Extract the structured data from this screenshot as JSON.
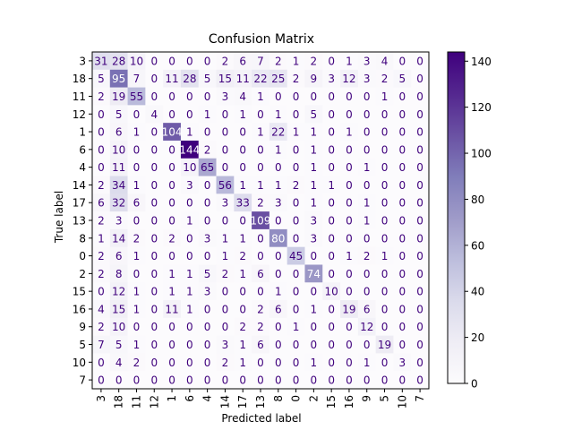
{
  "chart_data": {
    "type": "heatmap",
    "title": "Confusion Matrix",
    "xlabel": "Predicted label",
    "ylabel": "True label",
    "labels": [
      "3",
      "18",
      "11",
      "12",
      "1",
      "6",
      "4",
      "14",
      "17",
      "13",
      "8",
      "0",
      "2",
      "15",
      "16",
      "9",
      "5",
      "10",
      "7"
    ],
    "matrix": [
      [
        31,
        28,
        10,
        0,
        0,
        0,
        0,
        2,
        6,
        7,
        2,
        1,
        2,
        0,
        1,
        3,
        4,
        0,
        0
      ],
      [
        5,
        95,
        7,
        0,
        11,
        28,
        5,
        15,
        11,
        22,
        25,
        2,
        9,
        3,
        12,
        3,
        2,
        5,
        0
      ],
      [
        2,
        19,
        55,
        0,
        0,
        0,
        0,
        3,
        4,
        1,
        0,
        0,
        0,
        0,
        0,
        0,
        1,
        0,
        0
      ],
      [
        0,
        5,
        0,
        4,
        0,
        0,
        1,
        0,
        1,
        0,
        1,
        0,
        5,
        0,
        0,
        0,
        0,
        0,
        0
      ],
      [
        0,
        6,
        1,
        0,
        104,
        1,
        0,
        0,
        0,
        1,
        22,
        1,
        1,
        0,
        1,
        0,
        0,
        0,
        0
      ],
      [
        0,
        10,
        0,
        0,
        0,
        144,
        2,
        0,
        0,
        0,
        1,
        0,
        1,
        0,
        0,
        0,
        0,
        0,
        0
      ],
      [
        0,
        11,
        0,
        0,
        0,
        10,
        65,
        0,
        0,
        0,
        0,
        0,
        1,
        0,
        0,
        1,
        0,
        0,
        0
      ],
      [
        2,
        34,
        1,
        0,
        0,
        3,
        0,
        56,
        1,
        1,
        1,
        2,
        1,
        1,
        0,
        0,
        0,
        0,
        0
      ],
      [
        6,
        32,
        6,
        0,
        0,
        0,
        0,
        3,
        33,
        2,
        3,
        0,
        1,
        0,
        0,
        1,
        0,
        0,
        0
      ],
      [
        2,
        3,
        0,
        0,
        0,
        1,
        0,
        0,
        0,
        109,
        0,
        0,
        3,
        0,
        0,
        1,
        0,
        0,
        0
      ],
      [
        1,
        14,
        2,
        0,
        2,
        0,
        3,
        1,
        1,
        0,
        80,
        0,
        3,
        0,
        0,
        0,
        0,
        0,
        0
      ],
      [
        2,
        6,
        1,
        0,
        0,
        0,
        0,
        1,
        2,
        0,
        0,
        45,
        0,
        0,
        1,
        2,
        1,
        0,
        0
      ],
      [
        2,
        8,
        0,
        0,
        1,
        1,
        5,
        2,
        1,
        6,
        0,
        0,
        74,
        0,
        0,
        0,
        0,
        0,
        0
      ],
      [
        0,
        12,
        1,
        0,
        1,
        1,
        3,
        0,
        0,
        0,
        1,
        0,
        0,
        10,
        0,
        0,
        0,
        0,
        0
      ],
      [
        4,
        15,
        1,
        0,
        11,
        1,
        0,
        0,
        0,
        2,
        6,
        0,
        1,
        0,
        19,
        6,
        0,
        0,
        0
      ],
      [
        2,
        10,
        0,
        0,
        0,
        0,
        0,
        0,
        2,
        2,
        0,
        1,
        0,
        0,
        0,
        12,
        0,
        0,
        0
      ],
      [
        7,
        5,
        1,
        0,
        0,
        0,
        0,
        3,
        1,
        6,
        0,
        0,
        0,
        0,
        0,
        0,
        19,
        0,
        0
      ],
      [
        0,
        4,
        2,
        0,
        0,
        0,
        0,
        2,
        1,
        0,
        0,
        0,
        1,
        0,
        0,
        1,
        0,
        3,
        0
      ],
      [
        0,
        0,
        0,
        0,
        0,
        0,
        0,
        0,
        0,
        0,
        0,
        0,
        0,
        0,
        0,
        0,
        0,
        0,
        0
      ]
    ],
    "vmin": 0,
    "vmax": 144,
    "colormap": [
      "#fcfbfd",
      "#efedf5",
      "#dadaeb",
      "#bcbddc",
      "#9e9ac8",
      "#807dba",
      "#6a51a3",
      "#54278f",
      "#3f007d"
    ],
    "colorbar_ticks": [
      0,
      20,
      40,
      60,
      80,
      100,
      120,
      140
    ]
  }
}
